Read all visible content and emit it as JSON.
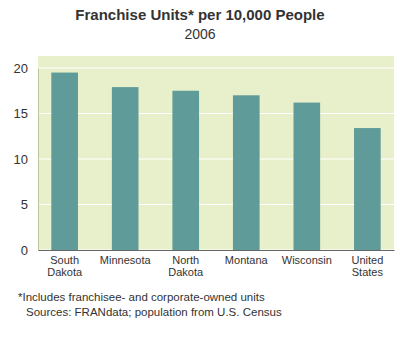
{
  "chart_data": {
    "type": "bar",
    "title": "Franchise Units* per 10,000 People",
    "subtitle": "2006",
    "categories": [
      "South Dakota",
      "Minnesota",
      "North Dakota",
      "Montana",
      "Wisconsin",
      "United States"
    ],
    "values": [
      19.5,
      17.9,
      17.5,
      17.0,
      16.2,
      13.4
    ],
    "color": "#5f9b98",
    "ylim": [
      0,
      20
    ],
    "yticks": [
      0,
      5,
      10,
      15,
      20
    ],
    "grid": true,
    "annotations": [
      "*Includes franchisee- and corporate-owned units",
      "Sources: FRANdata; population from U.S. Census"
    ]
  }
}
